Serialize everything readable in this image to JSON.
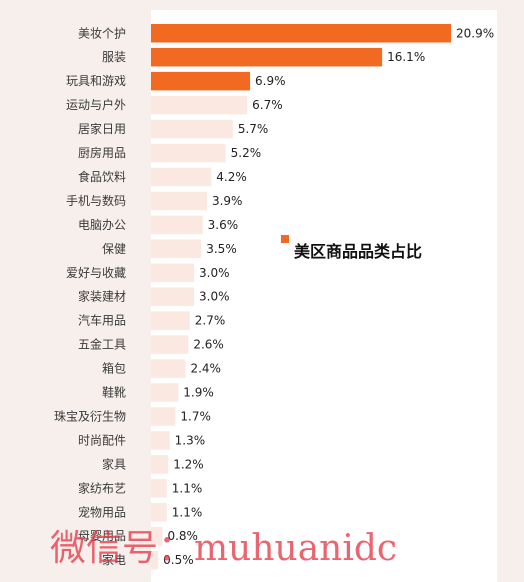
{
  "chart_data": {
    "type": "bar",
    "orientation": "horizontal",
    "categories": [
      "美妆个护",
      "服装",
      "玩具和游戏",
      "运动与户外",
      "居家日用",
      "厨房用品",
      "食品饮料",
      "手机与数码",
      "电脑办公",
      "保健",
      "爱好与收藏",
      "家装建材",
      "汽车用品",
      "五金工具",
      "箱包",
      "鞋靴",
      "珠宝及衍生物",
      "时尚配件",
      "家具",
      "家纺布艺",
      "宠物用品",
      "母婴用品",
      "家电"
    ],
    "values": [
      20.9,
      16.1,
      6.9,
      6.7,
      5.7,
      5.2,
      4.2,
      3.9,
      3.6,
      3.5,
      3.0,
      3.0,
      2.7,
      2.6,
      2.4,
      1.9,
      1.7,
      1.3,
      1.2,
      1.1,
      1.1,
      0.8,
      0.5
    ],
    "value_labels": [
      "20.9%",
      "16.1%",
      "6.9%",
      "6.7%",
      "5.7%",
      "5.2%",
      "4.2%",
      "3.9%",
      "3.6%",
      "3.5%",
      "3.0%",
      "3.0%",
      "2.7%",
      "2.6%",
      "2.4%",
      "1.9%",
      "1.7%",
      "1.3%",
      "1.2%",
      "1.1%",
      "1.1%",
      "0.8%",
      "0.5%"
    ],
    "unit": "%",
    "highlight_top_n": 3,
    "legend": {
      "label": "美区商品品类占比",
      "placement": "middle-right"
    },
    "title": "",
    "xlabel": "",
    "ylabel": "",
    "grid": false,
    "colors": {
      "highlight": "#f26a21",
      "normal": "#fbe8e0",
      "panel": "#ffffff",
      "background": "#f6efeb"
    }
  },
  "watermark": "微信号：muhuanidc"
}
